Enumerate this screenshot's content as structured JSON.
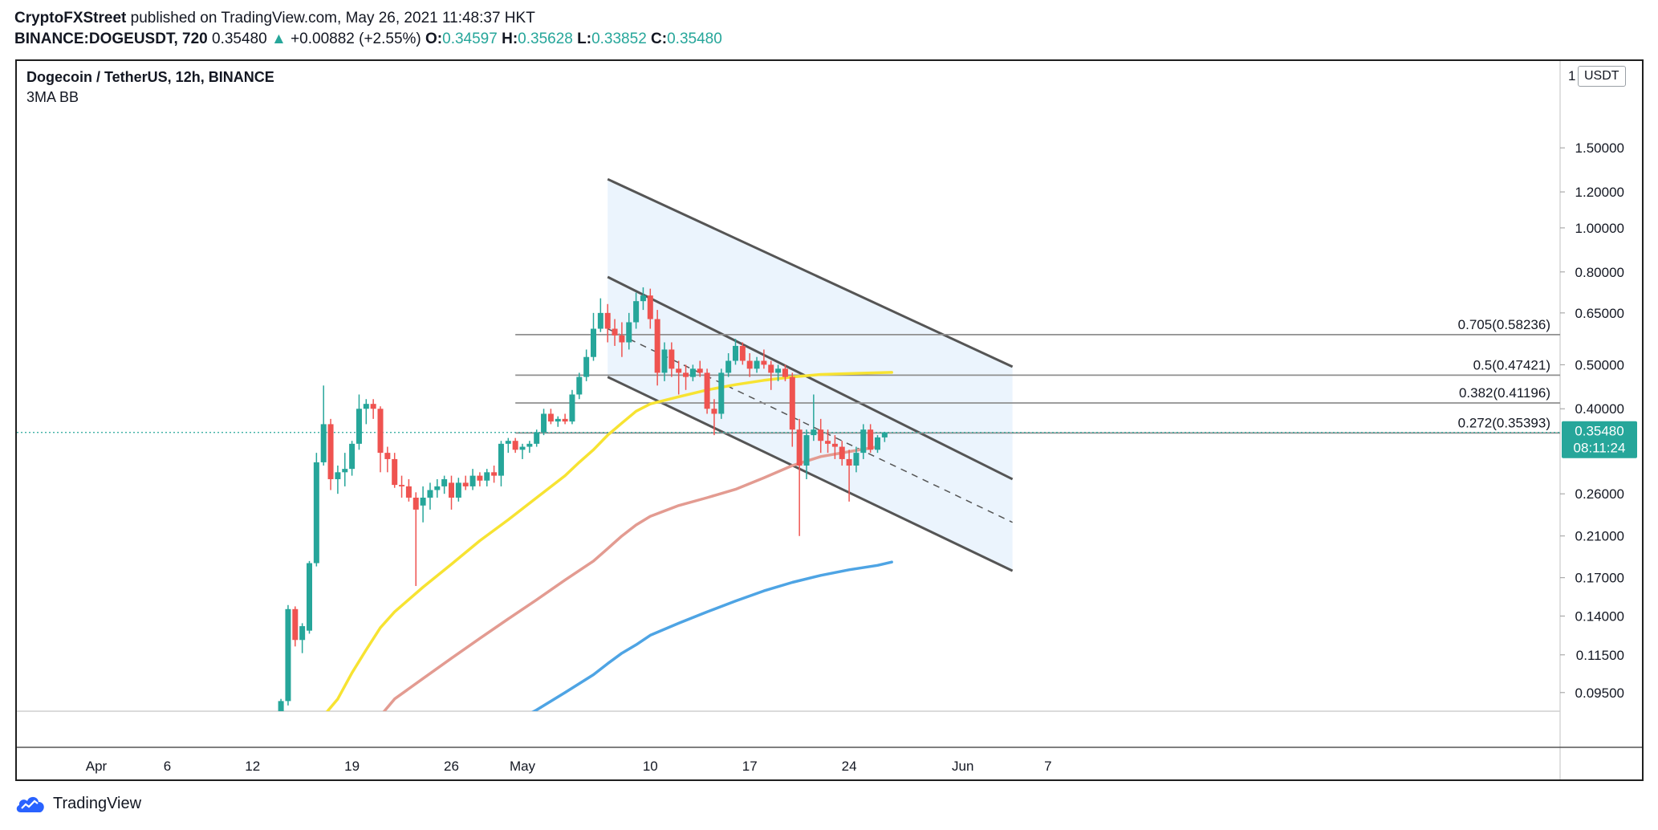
{
  "header": {
    "publisher": "CryptoFXStreet",
    "published_on": "published on TradingView.com, May 26, 2021 11:48:37 HKT",
    "symbol_line": "BINANCE:DOGEUSDT, 720",
    "last": "0.35480",
    "change_arrow": "▲",
    "change": "+0.00882 (+2.55%)",
    "o_label": "O:",
    "o": "0.34597",
    "h_label": "H:",
    "h": "0.35628",
    "l_label": "L:",
    "l": "0.33852",
    "c_label": "C:",
    "c": "0.35480"
  },
  "chart_title": "Dogecoin / TetherUS, 12h, BINANCE",
  "indicator_label": "3MA BB",
  "currency_label": "USDT",
  "footer_brand": "TradingView",
  "colors": {
    "up": "#26a69a",
    "down": "#ef5350",
    "ma_fast": "#f7e332",
    "ma_mid": "#e39b91",
    "ma_slow": "#4ea4e4",
    "channel_fill": "#e4f0fc",
    "channel_line": "#555555"
  },
  "chart_data": {
    "type": "candlestick",
    "y_scale": "log",
    "ylim": [
      0.083,
      2.2
    ],
    "y_ticks": [
      "1.50000",
      "1.20000",
      "1.00000",
      "0.80000",
      "0.65000",
      "0.50000",
      "0.40000",
      "0.26000",
      "0.21000",
      "0.17000",
      "0.14000",
      "0.11500",
      "0.09500"
    ],
    "y_tick_values": [
      1.5,
      1.2,
      1.0,
      0.8,
      0.65,
      0.5,
      0.4,
      0.26,
      0.21,
      0.17,
      0.14,
      0.115,
      0.095
    ],
    "y_top_partial": "1",
    "x_ticks": [
      {
        "label": "Apr",
        "day": 1
      },
      {
        "label": "6",
        "day": 6
      },
      {
        "label": "12",
        "day": 12
      },
      {
        "label": "19",
        "day": 19
      },
      {
        "label": "26",
        "day": 26
      },
      {
        "label": "May",
        "day": 31
      },
      {
        "label": "10",
        "day": 40
      },
      {
        "label": "17",
        "day": 47
      },
      {
        "label": "24",
        "day": 54
      },
      {
        "label": "Jun",
        "day": 62
      },
      {
        "label": "7",
        "day": 68
      }
    ],
    "x_range_days": [
      -3,
      72
    ],
    "price_label": "0.35480",
    "countdown_label": "08:11:24",
    "last_price": 0.3548,
    "candles": [
      {
        "t": 14.0,
        "o": 0.086,
        "h": 0.092,
        "l": 0.084,
        "c": 0.091
      },
      {
        "t": 14.5,
        "o": 0.091,
        "h": 0.148,
        "l": 0.089,
        "c": 0.145
      },
      {
        "t": 15.0,
        "o": 0.145,
        "h": 0.147,
        "l": 0.12,
        "c": 0.124
      },
      {
        "t": 15.5,
        "o": 0.124,
        "h": 0.135,
        "l": 0.116,
        "c": 0.133
      },
      {
        "t": 16.0,
        "o": 0.13,
        "h": 0.185,
        "l": 0.128,
        "c": 0.183
      },
      {
        "t": 16.5,
        "o": 0.183,
        "h": 0.32,
        "l": 0.18,
        "c": 0.305
      },
      {
        "t": 17.0,
        "o": 0.305,
        "h": 0.45,
        "l": 0.3,
        "c": 0.37
      },
      {
        "t": 17.5,
        "o": 0.37,
        "h": 0.38,
        "l": 0.265,
        "c": 0.28
      },
      {
        "t": 18.0,
        "o": 0.28,
        "h": 0.3,
        "l": 0.26,
        "c": 0.29
      },
      {
        "t": 18.5,
        "o": 0.29,
        "h": 0.32,
        "l": 0.27,
        "c": 0.295
      },
      {
        "t": 19.0,
        "o": 0.295,
        "h": 0.34,
        "l": 0.285,
        "c": 0.335
      },
      {
        "t": 19.5,
        "o": 0.335,
        "h": 0.43,
        "l": 0.325,
        "c": 0.4
      },
      {
        "t": 20.0,
        "o": 0.4,
        "h": 0.42,
        "l": 0.37,
        "c": 0.41
      },
      {
        "t": 20.5,
        "o": 0.41,
        "h": 0.42,
        "l": 0.38,
        "c": 0.4
      },
      {
        "t": 21.0,
        "o": 0.4,
        "h": 0.405,
        "l": 0.29,
        "c": 0.32
      },
      {
        "t": 21.5,
        "o": 0.32,
        "h": 0.33,
        "l": 0.29,
        "c": 0.31
      },
      {
        "t": 22.0,
        "o": 0.31,
        "h": 0.32,
        "l": 0.268,
        "c": 0.272
      },
      {
        "t": 22.5,
        "o": 0.272,
        "h": 0.285,
        "l": 0.255,
        "c": 0.27
      },
      {
        "t": 23.0,
        "o": 0.27,
        "h": 0.28,
        "l": 0.25,
        "c": 0.255
      },
      {
        "t": 23.5,
        "o": 0.255,
        "h": 0.262,
        "l": 0.163,
        "c": 0.24
      },
      {
        "t": 24.0,
        "o": 0.245,
        "h": 0.27,
        "l": 0.225,
        "c": 0.255
      },
      {
        "t": 24.5,
        "o": 0.255,
        "h": 0.275,
        "l": 0.24,
        "c": 0.265
      },
      {
        "t": 25.0,
        "o": 0.265,
        "h": 0.28,
        "l": 0.255,
        "c": 0.27
      },
      {
        "t": 25.5,
        "o": 0.27,
        "h": 0.285,
        "l": 0.26,
        "c": 0.28
      },
      {
        "t": 26.0,
        "o": 0.275,
        "h": 0.285,
        "l": 0.24,
        "c": 0.255
      },
      {
        "t": 26.5,
        "o": 0.255,
        "h": 0.282,
        "l": 0.25,
        "c": 0.275
      },
      {
        "t": 27.0,
        "o": 0.275,
        "h": 0.285,
        "l": 0.265,
        "c": 0.27
      },
      {
        "t": 27.5,
        "o": 0.27,
        "h": 0.295,
        "l": 0.265,
        "c": 0.285
      },
      {
        "t": 28.0,
        "o": 0.285,
        "h": 0.29,
        "l": 0.27,
        "c": 0.278
      },
      {
        "t": 28.5,
        "o": 0.278,
        "h": 0.295,
        "l": 0.27,
        "c": 0.29
      },
      {
        "t": 29.0,
        "o": 0.29,
        "h": 0.3,
        "l": 0.275,
        "c": 0.285
      },
      {
        "t": 29.5,
        "o": 0.285,
        "h": 0.34,
        "l": 0.27,
        "c": 0.335
      },
      {
        "t": 30.0,
        "o": 0.335,
        "h": 0.345,
        "l": 0.32,
        "c": 0.34
      },
      {
        "t": 30.5,
        "o": 0.34,
        "h": 0.345,
        "l": 0.32,
        "c": 0.325
      },
      {
        "t": 31.0,
        "o": 0.325,
        "h": 0.335,
        "l": 0.31,
        "c": 0.33
      },
      {
        "t": 31.5,
        "o": 0.33,
        "h": 0.34,
        "l": 0.32,
        "c": 0.335
      },
      {
        "t": 32.0,
        "o": 0.335,
        "h": 0.36,
        "l": 0.33,
        "c": 0.355
      },
      {
        "t": 32.5,
        "o": 0.355,
        "h": 0.4,
        "l": 0.35,
        "c": 0.39
      },
      {
        "t": 33.0,
        "o": 0.39,
        "h": 0.4,
        "l": 0.37,
        "c": 0.375
      },
      {
        "t": 33.5,
        "o": 0.375,
        "h": 0.385,
        "l": 0.365,
        "c": 0.38
      },
      {
        "t": 34.0,
        "o": 0.38,
        "h": 0.39,
        "l": 0.37,
        "c": 0.375
      },
      {
        "t": 34.5,
        "o": 0.375,
        "h": 0.44,
        "l": 0.37,
        "c": 0.43
      },
      {
        "t": 35.0,
        "o": 0.43,
        "h": 0.48,
        "l": 0.42,
        "c": 0.47
      },
      {
        "t": 35.5,
        "o": 0.47,
        "h": 0.54,
        "l": 0.46,
        "c": 0.52
      },
      {
        "t": 36.0,
        "o": 0.52,
        "h": 0.65,
        "l": 0.51,
        "c": 0.6
      },
      {
        "t": 36.5,
        "o": 0.6,
        "h": 0.7,
        "l": 0.59,
        "c": 0.65
      },
      {
        "t": 37.0,
        "o": 0.65,
        "h": 0.68,
        "l": 0.56,
        "c": 0.6
      },
      {
        "t": 37.5,
        "o": 0.6,
        "h": 0.63,
        "l": 0.55,
        "c": 0.58
      },
      {
        "t": 38.0,
        "o": 0.58,
        "h": 0.62,
        "l": 0.52,
        "c": 0.56
      },
      {
        "t": 38.5,
        "o": 0.56,
        "h": 0.65,
        "l": 0.54,
        "c": 0.62
      },
      {
        "t": 39.0,
        "o": 0.62,
        "h": 0.72,
        "l": 0.6,
        "c": 0.69
      },
      {
        "t": 39.5,
        "o": 0.69,
        "h": 0.74,
        "l": 0.66,
        "c": 0.71
      },
      {
        "t": 40.0,
        "o": 0.71,
        "h": 0.735,
        "l": 0.6,
        "c": 0.63
      },
      {
        "t": 40.5,
        "o": 0.63,
        "h": 0.66,
        "l": 0.45,
        "c": 0.48
      },
      {
        "t": 41.0,
        "o": 0.48,
        "h": 0.56,
        "l": 0.46,
        "c": 0.54
      },
      {
        "t": 41.5,
        "o": 0.54,
        "h": 0.56,
        "l": 0.47,
        "c": 0.49
      },
      {
        "t": 42.0,
        "o": 0.49,
        "h": 0.51,
        "l": 0.43,
        "c": 0.48
      },
      {
        "t": 42.5,
        "o": 0.48,
        "h": 0.5,
        "l": 0.44,
        "c": 0.47
      },
      {
        "t": 43.0,
        "o": 0.47,
        "h": 0.5,
        "l": 0.46,
        "c": 0.49
      },
      {
        "t": 43.5,
        "o": 0.49,
        "h": 0.51,
        "l": 0.47,
        "c": 0.48
      },
      {
        "t": 44.0,
        "o": 0.48,
        "h": 0.49,
        "l": 0.39,
        "c": 0.4
      },
      {
        "t": 44.5,
        "o": 0.4,
        "h": 0.42,
        "l": 0.35,
        "c": 0.39
      },
      {
        "t": 45.0,
        "o": 0.39,
        "h": 0.49,
        "l": 0.38,
        "c": 0.48
      },
      {
        "t": 45.5,
        "o": 0.48,
        "h": 0.53,
        "l": 0.47,
        "c": 0.51
      },
      {
        "t": 46.0,
        "o": 0.51,
        "h": 0.57,
        "l": 0.5,
        "c": 0.55
      },
      {
        "t": 46.5,
        "o": 0.55,
        "h": 0.56,
        "l": 0.5,
        "c": 0.51
      },
      {
        "t": 47.0,
        "o": 0.51,
        "h": 0.53,
        "l": 0.47,
        "c": 0.49
      },
      {
        "t": 47.5,
        "o": 0.49,
        "h": 0.52,
        "l": 0.48,
        "c": 0.51
      },
      {
        "t": 48.0,
        "o": 0.51,
        "h": 0.54,
        "l": 0.49,
        "c": 0.5
      },
      {
        "t": 48.5,
        "o": 0.5,
        "h": 0.51,
        "l": 0.44,
        "c": 0.48
      },
      {
        "t": 49.0,
        "o": 0.48,
        "h": 0.5,
        "l": 0.46,
        "c": 0.49
      },
      {
        "t": 49.5,
        "o": 0.49,
        "h": 0.5,
        "l": 0.46,
        "c": 0.47
      },
      {
        "t": 50.0,
        "o": 0.47,
        "h": 0.48,
        "l": 0.33,
        "c": 0.36
      },
      {
        "t": 50.5,
        "o": 0.36,
        "h": 0.38,
        "l": 0.21,
        "c": 0.3
      },
      {
        "t": 51.0,
        "o": 0.3,
        "h": 0.36,
        "l": 0.28,
        "c": 0.35
      },
      {
        "t": 51.5,
        "o": 0.35,
        "h": 0.43,
        "l": 0.34,
        "c": 0.36
      },
      {
        "t": 52.0,
        "o": 0.36,
        "h": 0.38,
        "l": 0.32,
        "c": 0.34
      },
      {
        "t": 52.5,
        "o": 0.34,
        "h": 0.36,
        "l": 0.32,
        "c": 0.335
      },
      {
        "t": 53.0,
        "o": 0.335,
        "h": 0.35,
        "l": 0.31,
        "c": 0.33
      },
      {
        "t": 53.5,
        "o": 0.33,
        "h": 0.34,
        "l": 0.3,
        "c": 0.31
      },
      {
        "t": 54.0,
        "o": 0.31,
        "h": 0.325,
        "l": 0.25,
        "c": 0.3
      },
      {
        "t": 54.5,
        "o": 0.3,
        "h": 0.33,
        "l": 0.29,
        "c": 0.32
      },
      {
        "t": 55.0,
        "o": 0.32,
        "h": 0.37,
        "l": 0.31,
        "c": 0.36
      },
      {
        "t": 55.5,
        "o": 0.36,
        "h": 0.37,
        "l": 0.32,
        "c": 0.325
      },
      {
        "t": 56.0,
        "o": 0.325,
        "h": 0.35,
        "l": 0.32,
        "c": 0.346
      },
      {
        "t": 56.5,
        "o": 0.346,
        "h": 0.356,
        "l": 0.338,
        "c": 0.355
      }
    ],
    "moving_averages": [
      {
        "color": "yellow",
        "points": [
          [
            16.8,
            0.083
          ],
          [
            18,
            0.092
          ],
          [
            19,
            0.105
          ],
          [
            20,
            0.118
          ],
          [
            21,
            0.132
          ],
          [
            22,
            0.143
          ],
          [
            24,
            0.162
          ],
          [
            26,
            0.182
          ],
          [
            28,
            0.205
          ],
          [
            30,
            0.228
          ],
          [
            32,
            0.255
          ],
          [
            34,
            0.285
          ],
          [
            35,
            0.305
          ],
          [
            36,
            0.325
          ],
          [
            37,
            0.35
          ],
          [
            38,
            0.372
          ],
          [
            39,
            0.395
          ],
          [
            40,
            0.41
          ],
          [
            42,
            0.425
          ],
          [
            44,
            0.44
          ],
          [
            46,
            0.452
          ],
          [
            48,
            0.462
          ],
          [
            50,
            0.47
          ],
          [
            52,
            0.476
          ],
          [
            54,
            0.478
          ],
          [
            56,
            0.48
          ],
          [
            57,
            0.481
          ]
        ]
      },
      {
        "color": "salmon",
        "points": [
          [
            20.8,
            0.083
          ],
          [
            22,
            0.092
          ],
          [
            24,
            0.102
          ],
          [
            26,
            0.113
          ],
          [
            28,
            0.125
          ],
          [
            30,
            0.138
          ],
          [
            32,
            0.152
          ],
          [
            34,
            0.168
          ],
          [
            36,
            0.185
          ],
          [
            37,
            0.197
          ],
          [
            38,
            0.21
          ],
          [
            39,
            0.222
          ],
          [
            40,
            0.232
          ],
          [
            42,
            0.245
          ],
          [
            44,
            0.255
          ],
          [
            46,
            0.266
          ],
          [
            48,
            0.282
          ],
          [
            50,
            0.3
          ],
          [
            52,
            0.314
          ],
          [
            54,
            0.322
          ],
          [
            56,
            0.33
          ]
        ]
      },
      {
        "color": "blue",
        "points": [
          [
            30.8,
            0.083
          ],
          [
            32,
            0.087
          ],
          [
            34,
            0.095
          ],
          [
            36,
            0.104
          ],
          [
            37,
            0.11
          ],
          [
            38,
            0.116
          ],
          [
            39,
            0.121
          ],
          [
            40,
            0.127
          ],
          [
            42,
            0.135
          ],
          [
            44,
            0.143
          ],
          [
            46,
            0.151
          ],
          [
            48,
            0.159
          ],
          [
            50,
            0.166
          ],
          [
            52,
            0.172
          ],
          [
            54,
            0.177
          ],
          [
            56,
            0.181
          ],
          [
            57,
            0.184
          ]
        ]
      }
    ],
    "fib_levels": [
      {
        "label": "0.705(0.58236)",
        "value": 0.58236
      },
      {
        "label": "0.5(0.47421)",
        "value": 0.47421
      },
      {
        "label": "0.382(0.41196)",
        "value": 0.41196
      },
      {
        "label": "0.272(0.35393)",
        "value": 0.35393
      }
    ],
    "fib_start_day": 30.5,
    "channel": {
      "start_day": 37.0,
      "end_day": 65.5,
      "outer_upper": [
        1.28,
        0.495
      ],
      "inner_upper": [
        0.78,
        0.28
      ],
      "inner_middle": [
        0.6,
        0.225
      ],
      "inner_lower": [
        0.47,
        0.176
      ]
    }
  }
}
